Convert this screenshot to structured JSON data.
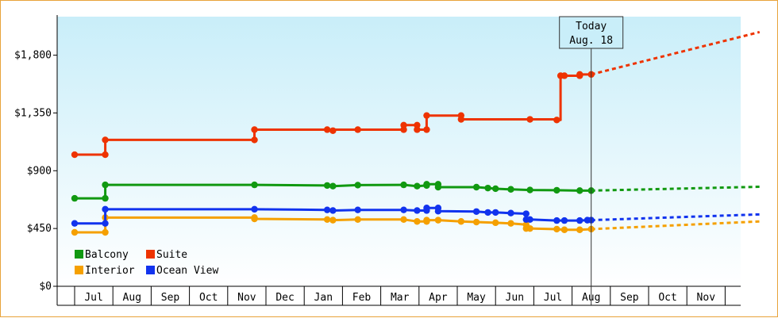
{
  "chart_data": {
    "type": "line",
    "title": "",
    "xlabel": "",
    "ylabel": "",
    "y_ticks": [
      "$0",
      "$450",
      "$900",
      "$1,350",
      "$1,800"
    ],
    "y_tick_values": [
      0,
      450,
      900,
      1350,
      1800
    ],
    "ylim": [
      0,
      2100
    ],
    "months": [
      "Jul",
      "Aug",
      "Sep",
      "Oct",
      "Nov",
      "Dec",
      "Jan",
      "Feb",
      "Mar",
      "Apr",
      "May",
      "Jun",
      "Jul",
      "Aug",
      "Sep",
      "Oct",
      "Nov"
    ],
    "xlim_months": [
      -0.5,
      17.4
    ],
    "today": {
      "line1": "Today",
      "line2": "Aug. 18",
      "x": 13.0
    },
    "legend": {
      "placement": "bottom-left"
    },
    "grid": false,
    "background": "light-blue gradient",
    "series": [
      {
        "name": "Suite",
        "color": "#ee3300",
        "points": [
          [
            -0.5,
            1025
          ],
          [
            0.3,
            1025
          ],
          [
            0.3,
            1140
          ],
          [
            4.2,
            1140
          ],
          [
            4.2,
            1220
          ],
          [
            6.1,
            1220
          ],
          [
            6.25,
            1212
          ],
          [
            6.25,
            1220
          ],
          [
            6.9,
            1220
          ],
          [
            8.1,
            1220
          ],
          [
            8.1,
            1255
          ],
          [
            8.45,
            1255
          ],
          [
            8.45,
            1220
          ],
          [
            8.7,
            1220
          ],
          [
            8.7,
            1330
          ],
          [
            9.6,
            1330
          ],
          [
            9.6,
            1300
          ],
          [
            11.4,
            1300
          ],
          [
            12.1,
            1300
          ],
          [
            12.1,
            1295
          ],
          [
            12.2,
            1295
          ],
          [
            12.2,
            1640
          ],
          [
            12.3,
            1640
          ],
          [
            12.7,
            1640
          ],
          [
            12.7,
            1650
          ],
          [
            13.0,
            1650
          ]
        ],
        "markers": [
          [
            -0.5,
            1025
          ],
          [
            0.3,
            1025
          ],
          [
            0.3,
            1140
          ],
          [
            4.2,
            1140
          ],
          [
            4.2,
            1220
          ],
          [
            6.1,
            1220
          ],
          [
            6.25,
            1212
          ],
          [
            6.9,
            1220
          ],
          [
            8.1,
            1220
          ],
          [
            8.1,
            1255
          ],
          [
            8.45,
            1255
          ],
          [
            8.45,
            1220
          ],
          [
            8.7,
            1220
          ],
          [
            8.7,
            1330
          ],
          [
            9.6,
            1330
          ],
          [
            9.6,
            1300
          ],
          [
            11.4,
            1300
          ],
          [
            12.1,
            1295
          ],
          [
            12.2,
            1640
          ],
          [
            12.3,
            1640
          ],
          [
            12.7,
            1640
          ],
          [
            12.7,
            1650
          ],
          [
            13.0,
            1650
          ]
        ],
        "forecast": [
          [
            13.0,
            1650
          ],
          [
            17.4,
            1980
          ]
        ]
      },
      {
        "name": "Balcony",
        "color": "#119911",
        "points": [
          [
            -0.5,
            685
          ],
          [
            0.3,
            685
          ],
          [
            0.3,
            790
          ],
          [
            4.2,
            790
          ],
          [
            6.1,
            785
          ],
          [
            6.25,
            780
          ],
          [
            6.9,
            788
          ],
          [
            8.1,
            790
          ],
          [
            8.45,
            780
          ],
          [
            8.7,
            785
          ],
          [
            8.7,
            795
          ],
          [
            9.0,
            795
          ],
          [
            9.0,
            772
          ],
          [
            10.0,
            772
          ],
          [
            10.3,
            765
          ],
          [
            10.5,
            760
          ],
          [
            10.9,
            755
          ],
          [
            11.4,
            750
          ],
          [
            12.1,
            748
          ],
          [
            12.7,
            745
          ],
          [
            13.0,
            745
          ]
        ],
        "markers": [
          [
            -0.5,
            685
          ],
          [
            0.3,
            685
          ],
          [
            0.3,
            790
          ],
          [
            4.2,
            790
          ],
          [
            6.1,
            785
          ],
          [
            6.25,
            780
          ],
          [
            6.9,
            788
          ],
          [
            8.1,
            790
          ],
          [
            8.45,
            780
          ],
          [
            8.7,
            785
          ],
          [
            8.7,
            795
          ],
          [
            9.0,
            795
          ],
          [
            9.0,
            772
          ],
          [
            10.0,
            772
          ],
          [
            10.3,
            765
          ],
          [
            10.5,
            760
          ],
          [
            10.9,
            755
          ],
          [
            11.4,
            750
          ],
          [
            12.1,
            748
          ],
          [
            12.7,
            745
          ],
          [
            13.0,
            745
          ]
        ],
        "forecast": [
          [
            13.0,
            745
          ],
          [
            17.4,
            775
          ]
        ]
      },
      {
        "name": "Ocean View",
        "color": "#1133ee",
        "points": [
          [
            -0.5,
            490
          ],
          [
            0.3,
            490
          ],
          [
            0.3,
            600
          ],
          [
            4.2,
            600
          ],
          [
            6.1,
            595
          ],
          [
            6.25,
            590
          ],
          [
            6.9,
            595
          ],
          [
            8.1,
            595
          ],
          [
            8.45,
            590
          ],
          [
            8.7,
            590
          ],
          [
            8.7,
            610
          ],
          [
            9.0,
            610
          ],
          [
            9.0,
            585
          ],
          [
            10.0,
            582
          ],
          [
            10.3,
            575
          ],
          [
            10.5,
            575
          ],
          [
            10.9,
            570
          ],
          [
            11.3,
            565
          ],
          [
            11.3,
            520
          ],
          [
            11.4,
            520
          ],
          [
            12.1,
            512
          ],
          [
            12.3,
            512
          ],
          [
            12.7,
            512
          ],
          [
            12.9,
            515
          ],
          [
            13.0,
            515
          ]
        ],
        "markers": [
          [
            -0.5,
            490
          ],
          [
            0.3,
            490
          ],
          [
            0.3,
            600
          ],
          [
            4.2,
            600
          ],
          [
            6.1,
            595
          ],
          [
            6.25,
            590
          ],
          [
            6.9,
            595
          ],
          [
            8.1,
            595
          ],
          [
            8.45,
            590
          ],
          [
            8.7,
            590
          ],
          [
            8.7,
            610
          ],
          [
            9.0,
            610
          ],
          [
            9.0,
            585
          ],
          [
            10.0,
            582
          ],
          [
            10.3,
            575
          ],
          [
            10.5,
            575
          ],
          [
            10.9,
            570
          ],
          [
            11.3,
            565
          ],
          [
            11.3,
            520
          ],
          [
            11.4,
            520
          ],
          [
            12.1,
            512
          ],
          [
            12.3,
            512
          ],
          [
            12.7,
            512
          ],
          [
            12.9,
            515
          ],
          [
            13.0,
            515
          ]
        ],
        "forecast": [
          [
            13.0,
            515
          ],
          [
            17.4,
            560
          ]
        ]
      },
      {
        "name": "Interior",
        "color": "#f5a000",
        "points": [
          [
            -0.5,
            420
          ],
          [
            0.3,
            420
          ],
          [
            0.3,
            535
          ],
          [
            4.2,
            535
          ],
          [
            4.2,
            525
          ],
          [
            6.1,
            520
          ],
          [
            6.25,
            515
          ],
          [
            6.9,
            520
          ],
          [
            8.1,
            520
          ],
          [
            8.45,
            505
          ],
          [
            8.7,
            505
          ],
          [
            8.7,
            515
          ],
          [
            9.0,
            515
          ],
          [
            9.6,
            505
          ],
          [
            10.0,
            500
          ],
          [
            10.5,
            495
          ],
          [
            10.9,
            490
          ],
          [
            11.3,
            480
          ],
          [
            11.3,
            450
          ],
          [
            11.4,
            450
          ],
          [
            12.1,
            445
          ],
          [
            12.3,
            440
          ],
          [
            12.7,
            440
          ],
          [
            13.0,
            445
          ]
        ],
        "markers": [
          [
            -0.5,
            420
          ],
          [
            0.3,
            420
          ],
          [
            0.3,
            535
          ],
          [
            4.2,
            535
          ],
          [
            4.2,
            525
          ],
          [
            6.1,
            520
          ],
          [
            6.25,
            515
          ],
          [
            6.9,
            520
          ],
          [
            8.1,
            520
          ],
          [
            8.45,
            505
          ],
          [
            8.7,
            505
          ],
          [
            8.7,
            515
          ],
          [
            9.0,
            515
          ],
          [
            9.6,
            505
          ],
          [
            10.0,
            500
          ],
          [
            10.5,
            495
          ],
          [
            10.9,
            490
          ],
          [
            11.3,
            480
          ],
          [
            11.3,
            450
          ],
          [
            11.4,
            450
          ],
          [
            12.1,
            445
          ],
          [
            12.3,
            440
          ],
          [
            12.7,
            440
          ],
          [
            13.0,
            445
          ]
        ],
        "forecast": [
          [
            13.0,
            445
          ],
          [
            17.4,
            505
          ]
        ]
      }
    ]
  }
}
